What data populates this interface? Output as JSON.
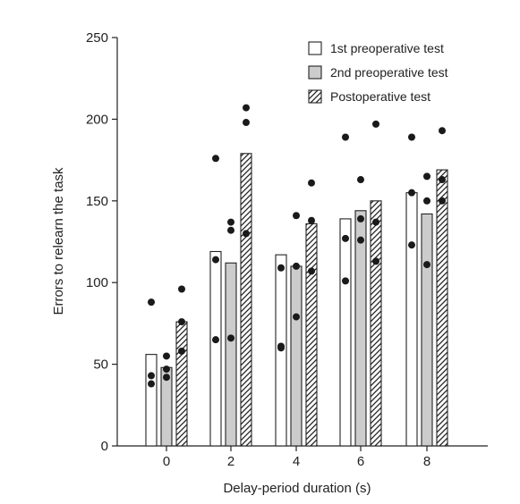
{
  "chart_data": {
    "type": "bar",
    "xlabel": "Delay-period duration (s)",
    "ylabel": "Errors to relearn the task",
    "categories": [
      "0",
      "2",
      "4",
      "6",
      "8"
    ],
    "ylim": [
      0,
      250
    ],
    "yticks": [
      "0",
      "50",
      "100",
      "150",
      "200",
      "250"
    ],
    "legend_position": "top-right",
    "series": [
      {
        "name": "1st preoperative test",
        "fill": "white",
        "values": [
          56,
          119,
          117,
          139,
          155
        ],
        "points": [
          [
            88,
            43,
            38
          ],
          [
            176,
            114,
            65
          ],
          [
            109,
            61,
            60
          ],
          [
            189,
            127,
            101
          ],
          [
            189,
            155,
            123
          ]
        ]
      },
      {
        "name": "2nd preoperative test",
        "fill": "gray",
        "values": [
          48,
          112,
          110,
          144,
          142
        ],
        "points": [
          [
            55,
            47,
            42
          ],
          [
            137,
            132,
            66
          ],
          [
            141,
            110,
            79
          ],
          [
            163,
            139,
            126
          ],
          [
            165,
            150,
            111
          ]
        ]
      },
      {
        "name": "Postoperative test",
        "fill": "hatched",
        "values": [
          76,
          179,
          136,
          150,
          169
        ],
        "points": [
          [
            96,
            76,
            58
          ],
          [
            207,
            198,
            130
          ],
          [
            161,
            138,
            107
          ],
          [
            197,
            137,
            113
          ],
          [
            193,
            163,
            150
          ]
        ]
      }
    ],
    "colors": {
      "white": "#ffffff",
      "gray": "#cccccc",
      "stroke": "#222222",
      "dot": "#1a1a1a"
    }
  }
}
